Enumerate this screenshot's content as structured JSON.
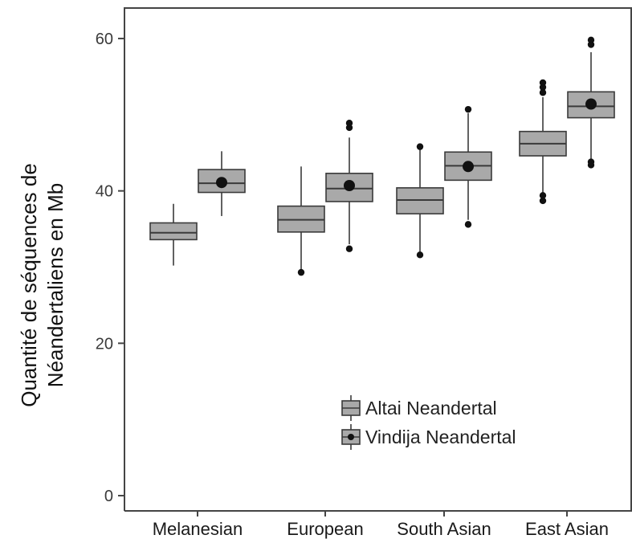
{
  "chart_data": {
    "type": "box",
    "categories": [
      "Melanesian",
      "European",
      "South Asian",
      "East Asian"
    ],
    "ylabel_lines": [
      "Quantité de séquences de",
      "Néandertaliens en Mb"
    ],
    "xlabel": "",
    "ylim": [
      -2,
      64
    ],
    "yticks": [
      0,
      20,
      40,
      60
    ],
    "grid": false,
    "legend_position": "bottom-right",
    "series": [
      {
        "name": "Altai Neandertal",
        "mean_marker": false,
        "boxes": [
          {
            "category": "Melanesian",
            "whisker_low": 30.2,
            "q1": 33.6,
            "median": 34.5,
            "q3": 35.8,
            "whisker_high": 38.3,
            "outliers": []
          },
          {
            "category": "European",
            "whisker_low": 29.5,
            "q1": 34.6,
            "median": 36.2,
            "q3": 38.0,
            "whisker_high": 43.2,
            "outliers": [
              29.3
            ]
          },
          {
            "category": "South Asian",
            "whisker_low": 32.0,
            "q1": 37.0,
            "median": 38.8,
            "q3": 40.4,
            "whisker_high": 45.5,
            "outliers": [
              31.6,
              45.8
            ]
          },
          {
            "category": "East Asian",
            "whisker_low": 39.5,
            "q1": 44.6,
            "median": 46.2,
            "q3": 47.8,
            "whisker_high": 52.3,
            "outliers": [
              38.7,
              39.4,
              52.9,
              53.6,
              54.2
            ]
          }
        ]
      },
      {
        "name": "Vindija Neandertal",
        "mean_marker": true,
        "boxes": [
          {
            "category": "Melanesian",
            "whisker_low": 36.7,
            "q1": 39.8,
            "median": 41.0,
            "q3": 42.8,
            "whisker_high": 45.2,
            "mean": 41.1,
            "outliers": []
          },
          {
            "category": "European",
            "whisker_low": 33.0,
            "q1": 38.6,
            "median": 40.3,
            "q3": 42.3,
            "whisker_high": 47.0,
            "mean": 40.7,
            "outliers": [
              32.4,
              48.3,
              48.9
            ]
          },
          {
            "category": "South Asian",
            "whisker_low": 36.2,
            "q1": 41.4,
            "median": 43.3,
            "q3": 45.1,
            "whisker_high": 50.2,
            "mean": 43.2,
            "outliers": [
              35.6,
              50.7
            ]
          },
          {
            "category": "East Asian",
            "whisker_low": 44.2,
            "q1": 49.6,
            "median": 51.1,
            "q3": 53.0,
            "whisker_high": 58.2,
            "mean": 51.4,
            "outliers": [
              43.4,
              43.8,
              59.2,
              59.8
            ]
          }
        ]
      }
    ]
  },
  "colors": {
    "box_fill": "#a9a9a9",
    "box_stroke": "#3a3a3a",
    "point": "#111111",
    "axis": "#444444"
  }
}
